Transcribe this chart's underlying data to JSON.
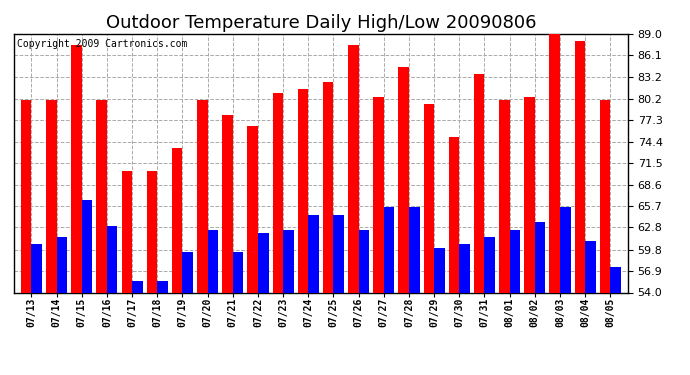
{
  "title": "Outdoor Temperature Daily High/Low 20090806",
  "copyright": "Copyright 2009 Cartronics.com",
  "dates": [
    "07/13",
    "07/14",
    "07/15",
    "07/16",
    "07/17",
    "07/18",
    "07/19",
    "07/20",
    "07/21",
    "07/22",
    "07/23",
    "07/24",
    "07/25",
    "07/26",
    "07/27",
    "07/28",
    "07/29",
    "07/30",
    "07/31",
    "08/01",
    "08/02",
    "08/03",
    "08/04",
    "08/05"
  ],
  "highs": [
    80.0,
    80.0,
    87.5,
    80.0,
    70.5,
    70.5,
    73.5,
    80.0,
    78.0,
    76.5,
    81.0,
    81.5,
    82.5,
    87.5,
    80.5,
    84.5,
    79.5,
    75.0,
    83.5,
    80.0,
    80.5,
    89.0,
    88.0,
    80.0
  ],
  "lows": [
    60.5,
    61.5,
    66.5,
    63.0,
    55.5,
    55.5,
    59.5,
    62.5,
    59.5,
    62.0,
    62.5,
    64.5,
    64.5,
    62.5,
    65.5,
    65.5,
    60.0,
    60.5,
    61.5,
    62.5,
    63.5,
    65.5,
    61.0,
    57.5
  ],
  "high_color": "#ff0000",
  "low_color": "#0000ff",
  "bg_color": "#ffffff",
  "grid_color": "#aaaaaa",
  "ylim_min": 54.0,
  "ylim_max": 89.0,
  "yticks": [
    54.0,
    56.9,
    59.8,
    62.8,
    65.7,
    68.6,
    71.5,
    74.4,
    77.3,
    80.2,
    83.2,
    86.1,
    89.0
  ],
  "title_fontsize": 13,
  "copyright_fontsize": 7,
  "tick_fontsize": 8,
  "bar_width": 0.42
}
